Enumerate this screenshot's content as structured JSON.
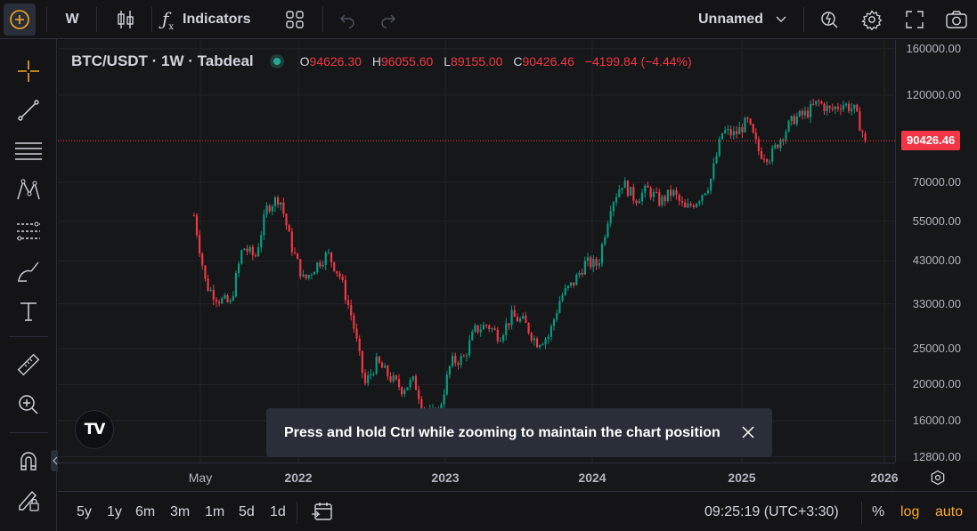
{
  "toolbar": {
    "interval": "W",
    "indicators_label": "Indicators",
    "layout_name": "Unnamed"
  },
  "legend": {
    "symbol": "BTC/USDT · 1W · Tabdeal",
    "o_label": "O",
    "o_value": "94626.30",
    "h_label": "H",
    "h_value": "96055.60",
    "l_label": "L",
    "l_value": "89155.00",
    "c_label": "C",
    "c_value": "90426.46",
    "change": "−4199.84 (−4.44%)"
  },
  "price_axis": {
    "labels": [
      "160000.00",
      "120000.00",
      "70000.00",
      "55000.00",
      "43000.00",
      "33000.00",
      "25000.00",
      "20000.00",
      "16000.00",
      "12800.00"
    ],
    "last_price": "90426.46"
  },
  "time_axis": {
    "labels": [
      "May",
      "2022",
      "2023",
      "2024",
      "2025",
      "2026"
    ]
  },
  "toast": {
    "message": "Press and hold Ctrl while zooming to maintain the chart position"
  },
  "bottom": {
    "ranges": [
      "5y",
      "1y",
      "6m",
      "3m",
      "1m",
      "5d",
      "1d"
    ],
    "clock": "09:25:19 (UTC+3:30)",
    "percent": "%",
    "log": "log",
    "auto": "auto"
  },
  "colors": {
    "up": "#089981",
    "down": "#f23645",
    "accent": "#f9a825",
    "bg": "#161719"
  },
  "chart_data": {
    "type": "candlestick",
    "title": "BTC/USDT · 1W · Tabdeal",
    "scale": "log",
    "ylim": [
      12000,
      165000
    ],
    "x_labels": [
      "May",
      "2022",
      "2023",
      "2024",
      "2025",
      "2026"
    ],
    "last_close": 90426.46,
    "close_path": [
      [
        "2021-04",
        57000
      ],
      [
        "2021-05",
        37000
      ],
      [
        "2021-06",
        34000
      ],
      [
        "2021-07",
        33000
      ],
      [
        "2021-08",
        47000
      ],
      [
        "2021-09",
        44000
      ],
      [
        "2021-10",
        60000
      ],
      [
        "2021-11",
        64000
      ],
      [
        "2021-12",
        47000
      ],
      [
        "2022-01",
        38000
      ],
      [
        "2022-02",
        42000
      ],
      [
        "2022-03",
        45000
      ],
      [
        "2022-04",
        39000
      ],
      [
        "2022-05",
        30000
      ],
      [
        "2022-06",
        20000
      ],
      [
        "2022-07",
        23000
      ],
      [
        "2022-08",
        21000
      ],
      [
        "2022-09",
        19500
      ],
      [
        "2022-10",
        20500
      ],
      [
        "2022-11",
        16500
      ],
      [
        "2022-12",
        16800
      ],
      [
        "2023-01",
        23000
      ],
      [
        "2023-02",
        23500
      ],
      [
        "2023-03",
        28000
      ],
      [
        "2023-04",
        29000
      ],
      [
        "2023-05",
        27000
      ],
      [
        "2023-06",
        30500
      ],
      [
        "2023-07",
        29500
      ],
      [
        "2023-08",
        26000
      ],
      [
        "2023-09",
        27000
      ],
      [
        "2023-10",
        34500
      ],
      [
        "2023-11",
        37500
      ],
      [
        "2023-12",
        42500
      ],
      [
        "2024-01",
        42000
      ],
      [
        "2024-02",
        61000
      ],
      [
        "2024-03",
        70000
      ],
      [
        "2024-04",
        63000
      ],
      [
        "2024-05",
        67000
      ],
      [
        "2024-06",
        62000
      ],
      [
        "2024-07",
        66000
      ],
      [
        "2024-08",
        59000
      ],
      [
        "2024-09",
        63000
      ],
      [
        "2024-10",
        70000
      ],
      [
        "2024-11",
        96000
      ],
      [
        "2024-12",
        94000
      ],
      [
        "2025-01",
        102000
      ],
      [
        "2025-02",
        84000
      ],
      [
        "2025-03",
        82000
      ],
      [
        "2025-04",
        94000
      ],
      [
        "2025-05",
        104000
      ],
      [
        "2025-06",
        107000
      ],
      [
        "2025-07",
        115000
      ],
      [
        "2025-08",
        109000
      ],
      [
        "2025-09",
        114000
      ],
      [
        "2025-10",
        110000
      ],
      [
        "2025-11",
        90426
      ]
    ]
  }
}
